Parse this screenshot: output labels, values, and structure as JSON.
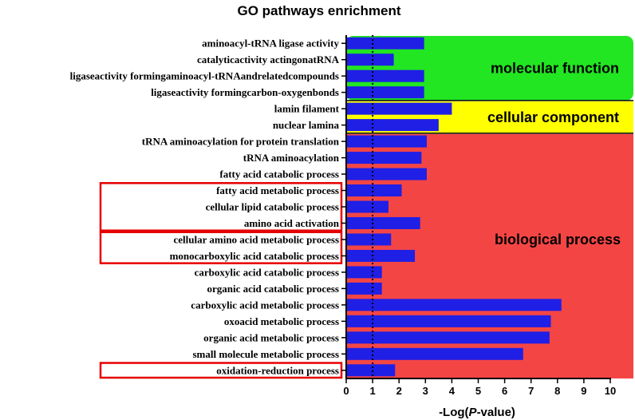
{
  "chart_data": {
    "type": "bar",
    "orientation": "horizontal",
    "title": "GO pathways enrichment",
    "xlabel_prefix": "-Log(",
    "xlabel_italic": "P",
    "xlabel_suffix": "-value)",
    "xlim": [
      0,
      10
    ],
    "xticks": [
      "0",
      "1",
      "2",
      "3",
      "4",
      "5",
      "6",
      "7",
      "8",
      "9",
      "10"
    ],
    "reference_line": 1.0,
    "categories": [
      "aminoacyl-tRNA ligase activity",
      "catalyticactivity actingonatRNA",
      "ligaseactivity formingaminoacyl-tRNAandrelatedcompounds",
      "ligaseactivity formingcarbon-oxygenbonds",
      "lamin filament",
      "nuclear lamina",
      "tRNA aminoacylation for protein translation",
      "tRNA aminoacylation",
      "fatty acid catabolic process",
      "fatty acid metabolic process",
      "cellular lipid catabolic process",
      "amino acid activation",
      "cellular amino acid metabolic process",
      "monocarboxylic acid catabolic process",
      "carboxylic acid catabolic process",
      "organic acid catabolic process",
      "carboxylic acid metabolic process",
      "oxoacid metabolic process",
      "organic acid metabolic process",
      "small molecule metabolic process",
      "oxidation-reduction process"
    ],
    "values": [
      2.95,
      1.8,
      2.95,
      2.95,
      4.0,
      3.5,
      3.05,
      2.85,
      3.05,
      2.1,
      1.6,
      2.8,
      1.7,
      2.6,
      1.35,
      1.35,
      8.15,
      7.75,
      7.7,
      6.7,
      1.85
    ],
    "groups": [
      {
        "label": "molecular function",
        "start": 0,
        "end": 3,
        "color": "#22e622"
      },
      {
        "label": "cellular component",
        "start": 4,
        "end": 5,
        "color": "#ffff00"
      },
      {
        "label": "biological process",
        "start": 6,
        "end": 20,
        "color": "#f44545"
      }
    ],
    "highlight_boxes": [
      [
        9,
        11
      ],
      [
        12,
        13
      ],
      [
        20,
        20
      ]
    ],
    "colors": {
      "bar": "#1f1fe6",
      "highlight": "#e60000"
    }
  }
}
